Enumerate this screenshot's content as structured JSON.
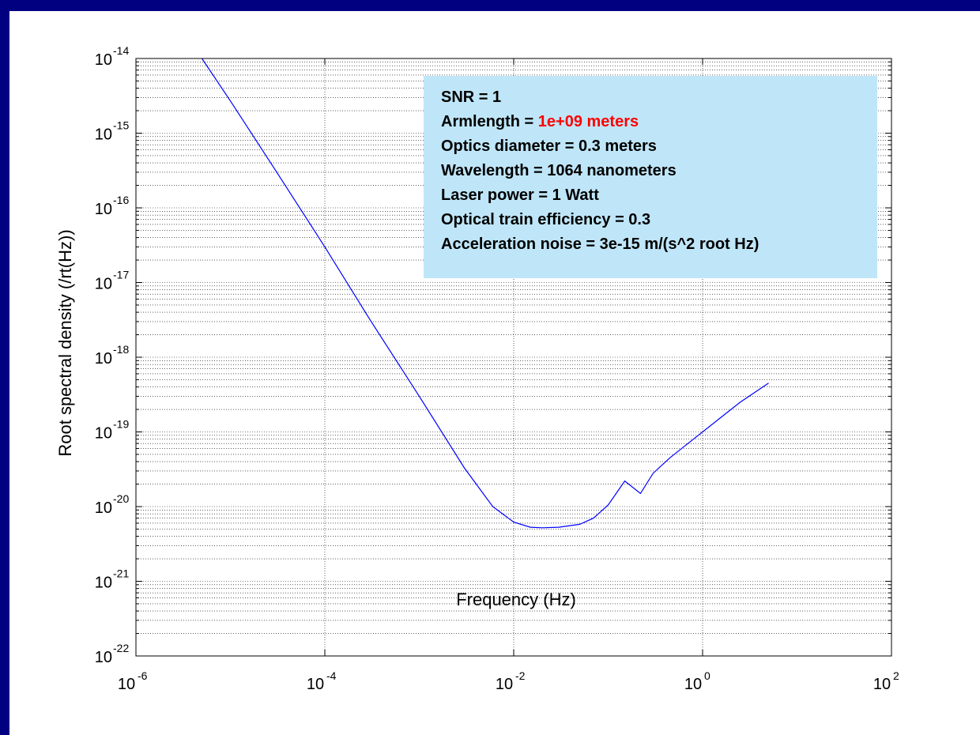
{
  "colors": {
    "background": "#000080",
    "plot_background": "#ffffff",
    "curve": "#0000ff",
    "info_box": "#bfe6f8",
    "highlight": "#ff0000"
  },
  "chart_data": {
    "type": "line",
    "title": "",
    "xlabel": "Frequency (Hz)",
    "ylabel": "Root spectral density (/rt(Hz))",
    "xscale": "log",
    "yscale": "log",
    "xlim": [
      1e-06,
      100
    ],
    "ylim": [
      1e-22,
      1e-14
    ],
    "grid": true,
    "x_ticks": [
      {
        "base": "10",
        "exp": "-6"
      },
      {
        "base": "10",
        "exp": "-4"
      },
      {
        "base": "10",
        "exp": "-2"
      },
      {
        "base": "10",
        "exp": "0"
      },
      {
        "base": "10",
        "exp": "2"
      }
    ],
    "y_ticks": [
      {
        "base": "10",
        "exp": "-22"
      },
      {
        "base": "10",
        "exp": "-21"
      },
      {
        "base": "10",
        "exp": "-20"
      },
      {
        "base": "10",
        "exp": "-19"
      },
      {
        "base": "10",
        "exp": "-18"
      },
      {
        "base": "10",
        "exp": "-17"
      },
      {
        "base": "10",
        "exp": "-16"
      },
      {
        "base": "10",
        "exp": "-15"
      },
      {
        "base": "10",
        "exp": "-14"
      }
    ],
    "series": [
      {
        "x": [
          5e-06,
          1e-05,
          3e-05,
          0.0001,
          0.0003,
          0.001,
          0.003,
          0.006,
          0.01,
          0.015,
          0.02,
          0.03,
          0.05,
          0.07,
          0.1,
          0.15,
          0.22,
          0.3,
          0.45,
          0.65,
          1.0,
          1.5,
          2.5,
          5.0
        ],
        "y": [
          1e-14,
          2.7e-15,
          3.2e-16,
          3e-17,
          3.2e-18,
          3e-19,
          3.3e-20,
          1e-20,
          6.2e-21,
          5.3e-21,
          5.2e-21,
          5.3e-21,
          5.8e-21,
          7e-21,
          1.05e-20,
          2.2e-20,
          1.5e-20,
          2.8e-20,
          4.5e-20,
          6.5e-20,
          1e-19,
          1.5e-19,
          2.5e-19,
          4.5e-19
        ]
      }
    ]
  },
  "info_box": {
    "lines": [
      "SNR = 1",
      "Armlength = ",
      "Optics diameter = 0.3 meters",
      "Wavelength = 1064 nanometers",
      "Laser power = 1 Watt",
      "Optical train efficiency = 0.3",
      "Acceleration noise = 3e-15 m/(s^2 root Hz)"
    ],
    "armlength_value": "1e+09 meters"
  }
}
